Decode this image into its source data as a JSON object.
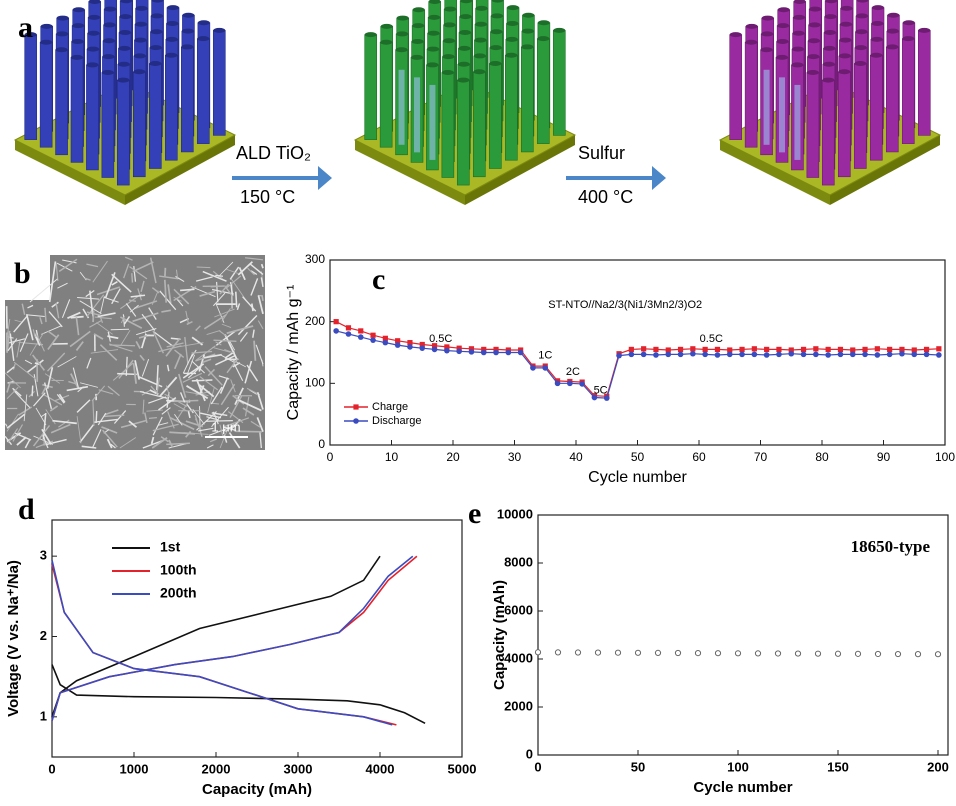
{
  "figure": {
    "panel_labels": [
      "a",
      "b",
      "c",
      "d",
      "e"
    ],
    "arrows": [
      {
        "top": "ALD TiO₂",
        "bottom": "150 °C"
      },
      {
        "top": "Sulfur",
        "bottom": "400 °C"
      }
    ],
    "scale_bar": "1 μm"
  },
  "chart_data": [
    {
      "type": "line",
      "markers": true,
      "annotation": "ST-NTO//Na2/3(Ni1/3Mn2/3)O2",
      "rate_labels": [
        "0.5C",
        "1C",
        "2C",
        "5C",
        "0.5C"
      ],
      "x": [
        1,
        3,
        5,
        7,
        9,
        11,
        13,
        15,
        17,
        19,
        21,
        23,
        25,
        27,
        29,
        31,
        33,
        35,
        37,
        39,
        41,
        43,
        45,
        47,
        49,
        51,
        53,
        55,
        57,
        59,
        61,
        63,
        65,
        67,
        69,
        71,
        73,
        75,
        77,
        79,
        81,
        83,
        85,
        87,
        89,
        91,
        93,
        95,
        97,
        99
      ],
      "series": [
        {
          "name": "Charge",
          "color": "#e3222b",
          "values": [
            200,
            190,
            185,
            178,
            173,
            169,
            166,
            163,
            161,
            159,
            157,
            156,
            155,
            155,
            154,
            154,
            128,
            128,
            104,
            103,
            102,
            80,
            79,
            148,
            155,
            156,
            155,
            154,
            155,
            156,
            155,
            155,
            154,
            155,
            156,
            155,
            155,
            154,
            155,
            156,
            155,
            155,
            154,
            155,
            156,
            155,
            155,
            154,
            155,
            156
          ]
        },
        {
          "name": "Discharge",
          "color": "#3b4cc0",
          "values": [
            185,
            180,
            175,
            170,
            166,
            162,
            159,
            157,
            155,
            153,
            152,
            151,
            150,
            150,
            150,
            150,
            125,
            125,
            100,
            100,
            99,
            77,
            76,
            145,
            147,
            147,
            146,
            147,
            147,
            148,
            147,
            146,
            147,
            147,
            147,
            146,
            147,
            148,
            147,
            147,
            146,
            147,
            147,
            147,
            146,
            147,
            148,
            147,
            147,
            146
          ]
        }
      ],
      "xlabel": "Cycle number",
      "ylabel": "Capacity / mAh g⁻¹",
      "xlim": [
        0,
        100
      ],
      "ylim": [
        0,
        300
      ],
      "xticks": [
        0,
        10,
        20,
        30,
        40,
        50,
        60,
        70,
        80,
        90,
        100
      ],
      "yticks": [
        0,
        100,
        200,
        300
      ],
      "legend": "lower left"
    },
    {
      "type": "line",
      "markers": false,
      "series": [
        {
          "name": "1st",
          "color": "#111111",
          "x": [
            0,
            100,
            300,
            1000,
            1800,
            2600,
            3400,
            3800,
            4000,
            null,
            0,
            100,
            300,
            1000,
            2000,
            3000,
            3600,
            4000,
            4300,
            4550
          ],
          "values": [
            1.0,
            1.3,
            1.45,
            1.75,
            2.1,
            2.3,
            2.5,
            2.7,
            3.0,
            null,
            1.65,
            1.4,
            1.27,
            1.25,
            1.24,
            1.22,
            1.2,
            1.15,
            1.05,
            0.92
          ]
        },
        {
          "name": "100th",
          "color": "#e3222b",
          "x": [
            0,
            100,
            700,
            1500,
            2200,
            2900,
            3500,
            3800,
            4100,
            4450,
            null,
            0,
            150,
            500,
            1000,
            1800,
            2400,
            3000,
            3800,
            4200
          ],
          "values": [
            0.95,
            1.3,
            1.5,
            1.65,
            1.75,
            1.9,
            2.05,
            2.3,
            2.7,
            3.0,
            null,
            2.9,
            2.3,
            1.8,
            1.6,
            1.5,
            1.3,
            1.1,
            1.0,
            0.9
          ]
        },
        {
          "name": "200th",
          "color": "#3b4cc0",
          "x": [
            0,
            100,
            700,
            1500,
            2200,
            2900,
            3500,
            3800,
            4100,
            4400,
            null,
            0,
            150,
            500,
            1000,
            1800,
            2400,
            3000,
            3800,
            4150
          ],
          "values": [
            0.95,
            1.3,
            1.5,
            1.65,
            1.75,
            1.9,
            2.05,
            2.35,
            2.75,
            3.0,
            null,
            2.95,
            2.3,
            1.8,
            1.6,
            1.5,
            1.3,
            1.1,
            1.0,
            0.9
          ]
        }
      ],
      "xlabel": "Capacity (mAh)",
      "ylabel": "Voltage (V vs. Na⁺/Na)",
      "xlim": [
        0,
        5000
      ],
      "ylim": [
        0.5,
        3.45
      ],
      "xticks": [
        0,
        1000,
        2000,
        3000,
        4000,
        5000
      ],
      "yticks": [
        1,
        2,
        3
      ],
      "legend": "upper left"
    },
    {
      "type": "scatter",
      "annotation": "18650-type",
      "color": "#666666",
      "x": [
        0,
        10,
        20,
        30,
        40,
        50,
        60,
        70,
        80,
        90,
        100,
        110,
        120,
        130,
        140,
        150,
        160,
        170,
        180,
        190,
        200
      ],
      "values": [
        4280,
        4275,
        4270,
        4266,
        4262,
        4258,
        4254,
        4250,
        4246,
        4242,
        4238,
        4234,
        4230,
        4226,
        4222,
        4218,
        4214,
        4210,
        4206,
        4203,
        4200
      ],
      "xlabel": "Cycle number",
      "ylabel": "Capacity (mAh)",
      "xlim": [
        0,
        205
      ],
      "ylim": [
        0,
        10000
      ],
      "xticks": [
        0,
        50,
        100,
        150,
        200
      ],
      "yticks": [
        0,
        2000,
        4000,
        6000,
        8000,
        10000
      ]
    }
  ]
}
